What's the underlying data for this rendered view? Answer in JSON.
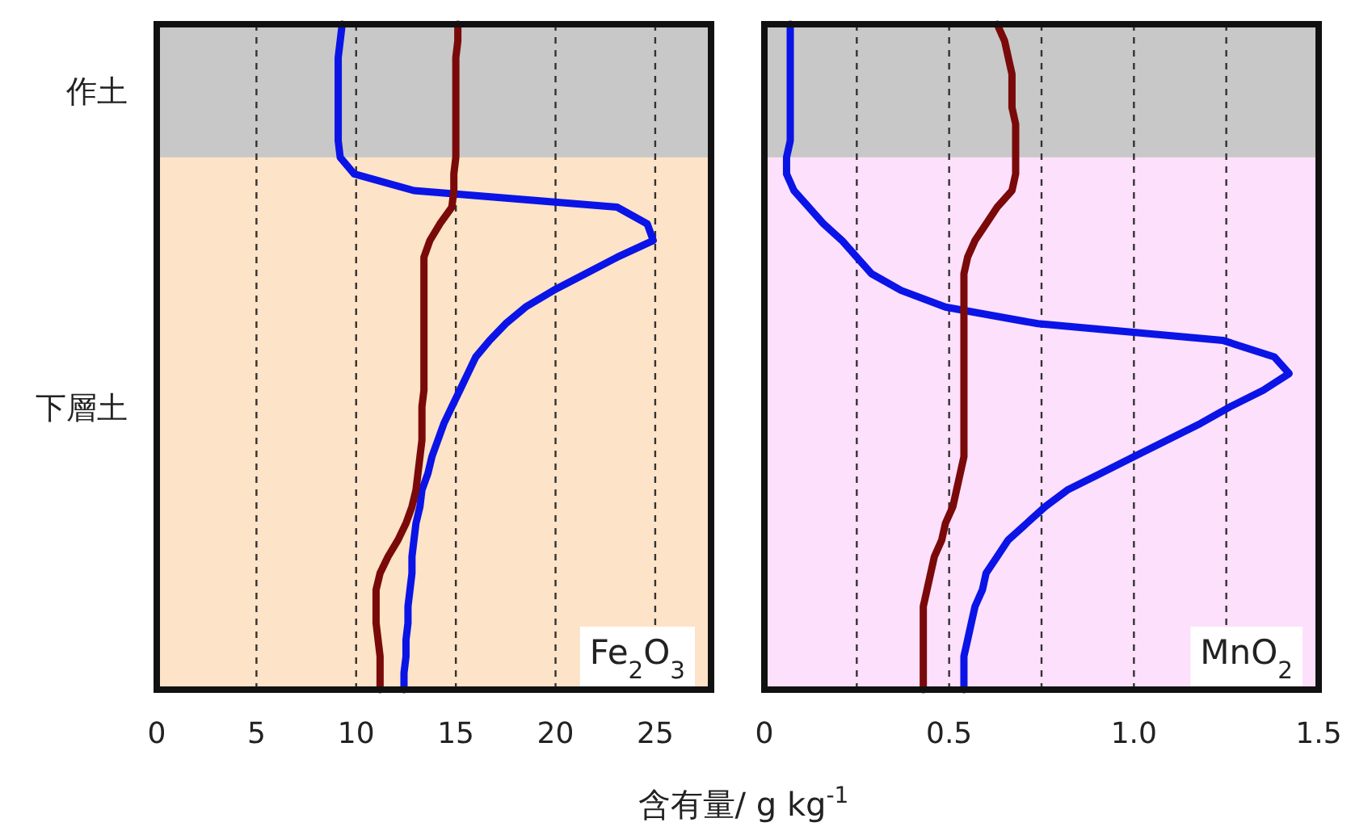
{
  "chart_data": [
    {
      "type": "line",
      "orientation": "horizontal",
      "categories": [
        null,
        null,
        null,
        null,
        "作土",
        null,
        null,
        null,
        null,
        null,
        null,
        null,
        null,
        null,
        null,
        null,
        null,
        null,
        null,
        null,
        null,
        null,
        null,
        "下層土",
        null,
        null,
        null,
        null,
        null,
        null,
        null,
        null,
        null,
        null,
        null,
        null,
        null,
        null,
        null,
        null,
        null
      ],
      "series": [
        {
          "color": "#0a14e6",
          "values": [
            9.3,
            9.2,
            9.1,
            9.1,
            9.1,
            9.1,
            9.1,
            9.1,
            9.2,
            9.9,
            12.9,
            23.1,
            24.6,
            24.9,
            23.1,
            21.5,
            19.9,
            18.5,
            17.5,
            16.7,
            16.0,
            15.6,
            15.2,
            14.8,
            14.4,
            14.1,
            13.8,
            13.6,
            13.3,
            13.2,
            13.0,
            12.9,
            12.8,
            12.8,
            12.7,
            12.6,
            12.6,
            12.5,
            12.5,
            12.4,
            12.4
          ]
        },
        {
          "color": "#7a0a0a",
          "values": [
            15.1,
            15.1,
            15.0,
            15.0,
            15.0,
            15.0,
            15.0,
            15.0,
            15.0,
            14.9,
            14.9,
            14.8,
            14.2,
            13.7,
            13.4,
            13.4,
            13.4,
            13.4,
            13.4,
            13.4,
            13.4,
            13.4,
            13.4,
            13.3,
            13.3,
            13.3,
            13.2,
            13.1,
            13.0,
            12.8,
            12.5,
            12.1,
            11.6,
            11.2,
            11.0,
            11.0,
            11.0,
            11.1,
            11.2,
            11.2,
            11.2
          ]
        }
      ],
      "xlim": [
        0,
        27.8
      ],
      "xticks": [
        0,
        5,
        10,
        15,
        20,
        25
      ],
      "grid": "x",
      "annotations": [
        "Fe$_{2}$O$_{3}$"
      ],
      "xlabel": "含有量/ g kg$^{-1}$"
    },
    {
      "type": "line",
      "orientation": "horizontal",
      "categories": [
        null,
        null,
        null,
        null,
        null,
        null,
        null,
        null,
        null,
        null,
        null,
        null,
        null,
        null,
        null,
        null,
        null,
        null,
        null,
        null,
        null,
        null,
        null,
        null,
        null,
        null,
        null,
        null,
        null,
        null,
        null,
        null,
        null,
        null,
        null,
        null,
        null,
        null,
        null,
        null,
        null
      ],
      "series": [
        {
          "color": "#0a14e6",
          "values": [
            0.07,
            0.07,
            0.07,
            0.07,
            0.07,
            0.07,
            0.07,
            0.07,
            0.06,
            0.06,
            0.08,
            0.12,
            0.16,
            0.21,
            0.25,
            0.29,
            0.37,
            0.49,
            0.74,
            1.24,
            1.38,
            1.42,
            1.35,
            1.26,
            1.18,
            1.09,
            1.0,
            0.91,
            0.82,
            0.76,
            0.71,
            0.66,
            0.63,
            0.6,
            0.59,
            0.57,
            0.56,
            0.55,
            0.54,
            0.54,
            0.54
          ]
        },
        {
          "color": "#7a0a0a",
          "values": [
            0.63,
            0.65,
            0.66,
            0.67,
            0.67,
            0.67,
            0.68,
            0.68,
            0.68,
            0.68,
            0.67,
            0.63,
            0.6,
            0.57,
            0.55,
            0.54,
            0.54,
            0.54,
            0.54,
            0.54,
            0.54,
            0.54,
            0.54,
            0.54,
            0.54,
            0.54,
            0.54,
            0.53,
            0.52,
            0.51,
            0.49,
            0.48,
            0.46,
            0.45,
            0.44,
            0.43,
            0.43,
            0.43,
            0.43,
            0.43,
            0.43
          ]
        }
      ],
      "xlim": [
        0,
        1.5
      ],
      "xticks": [
        0,
        {
          "value": 0.25,
          "label": null
        },
        0.5,
        {
          "value": 0.75,
          "label": null
        },
        {
          "value": 1.0,
          "label": "1.0"
        },
        {
          "value": 1.25,
          "label": null
        },
        1.5
      ],
      "grid": "x",
      "tick_labels": "x",
      "annotations": [
        "MnO$_{2}$"
      ]
    }
  ]
}
